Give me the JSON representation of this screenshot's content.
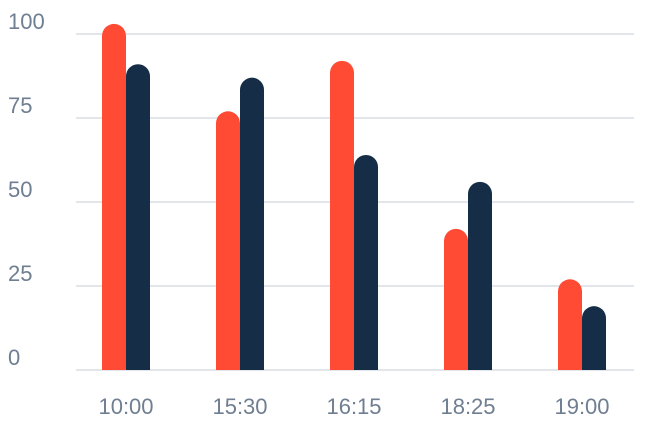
{
  "chart_data": {
    "type": "bar",
    "title": "",
    "xlabel": "",
    "ylabel": "",
    "categories": [
      "10:00",
      "15:30",
      "16:15",
      "18:25",
      "19:00"
    ],
    "series": [
      {
        "color": "#ff4b33",
        "values": [
          103,
          77,
          92,
          42,
          27
        ]
      },
      {
        "color": "#152d47",
        "values": [
          91,
          87,
          64,
          56,
          19
        ]
      }
    ],
    "ylim": [
      0,
      100
    ],
    "yticks": [
      0,
      25,
      50,
      75,
      100
    ],
    "grid": true,
    "legend": "none"
  }
}
